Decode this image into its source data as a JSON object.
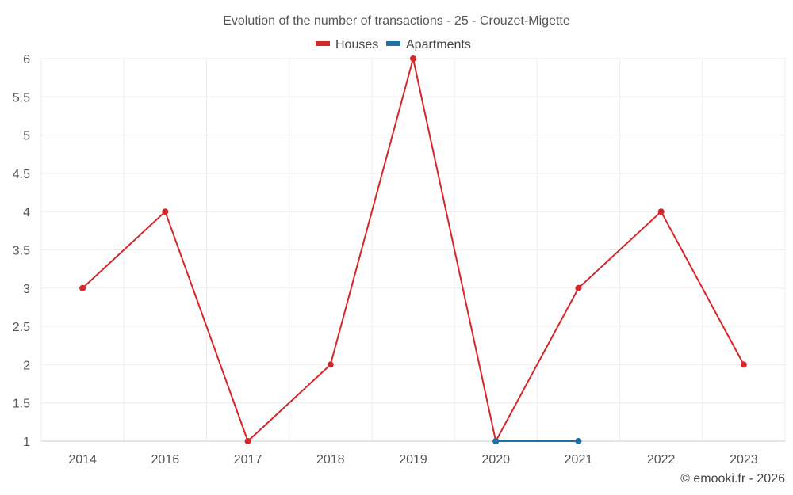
{
  "chart_data": {
    "type": "line",
    "title": "Evolution of the number of transactions - 25 - Crouzet-Migette",
    "categories": [
      "2014",
      "2016",
      "2017",
      "2018",
      "2019",
      "2020",
      "2021",
      "2022",
      "2023"
    ],
    "ylim": [
      1,
      6
    ],
    "yticks": [
      "1",
      "1.5",
      "2",
      "2.5",
      "3",
      "3.5",
      "4",
      "4.5",
      "5",
      "5.5",
      "6"
    ],
    "grid": true,
    "legend_position": "top",
    "series": [
      {
        "name": "Houses",
        "color": "#d62728",
        "values": [
          3,
          4,
          1,
          2,
          6,
          1,
          3,
          4,
          2
        ]
      },
      {
        "name": "Apartments",
        "color": "#1f6fa3",
        "values": [
          null,
          null,
          null,
          null,
          null,
          1,
          1,
          null,
          null
        ]
      }
    ]
  },
  "footer": {
    "credit": "© emooki.fr - 2026"
  }
}
